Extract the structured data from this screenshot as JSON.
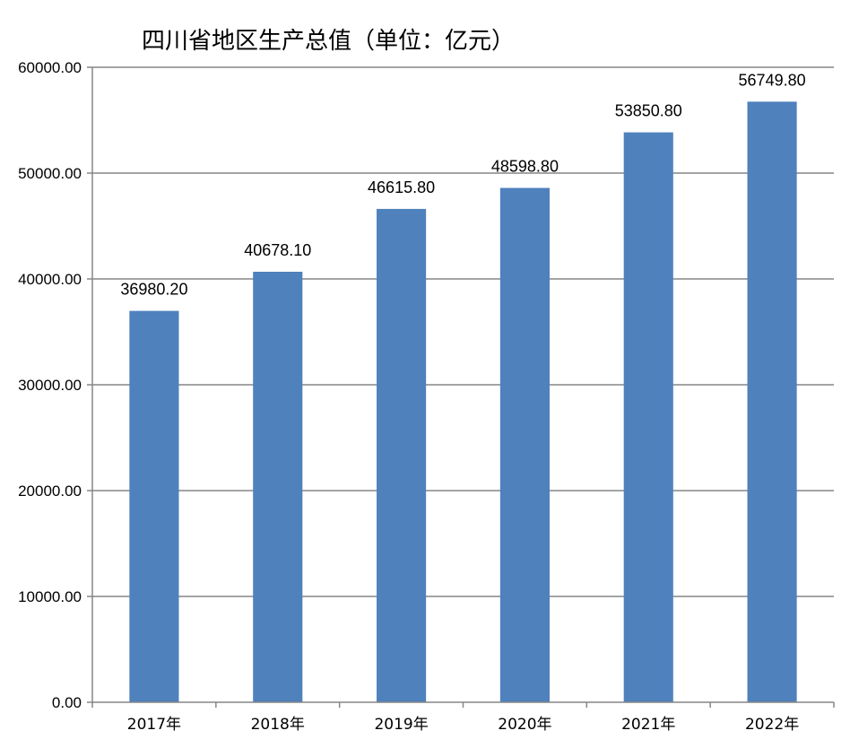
{
  "chart_data": {
    "type": "bar",
    "title": "四川省地区生产总值（单位：亿元）",
    "categories": [
      "2017年",
      "2018年",
      "2019年",
      "2020年",
      "2021年",
      "2022年"
    ],
    "values": [
      36980.2,
      40678.1,
      46615.8,
      48598.8,
      53850.8,
      56749.8
    ],
    "data_labels": [
      "36980.20",
      "40678.10",
      "46615.80",
      "48598.80",
      "53850.80",
      "56749.80"
    ],
    "y_ticks": [
      "0.00",
      "10000.00",
      "20000.00",
      "30000.00",
      "40000.00",
      "50000.00",
      "60000.00"
    ],
    "ylim": [
      0,
      60000
    ],
    "grid": true,
    "legend": "none",
    "colors": {
      "bar": "#4f81bd",
      "grid": "#868686",
      "axis": "#868686"
    }
  }
}
